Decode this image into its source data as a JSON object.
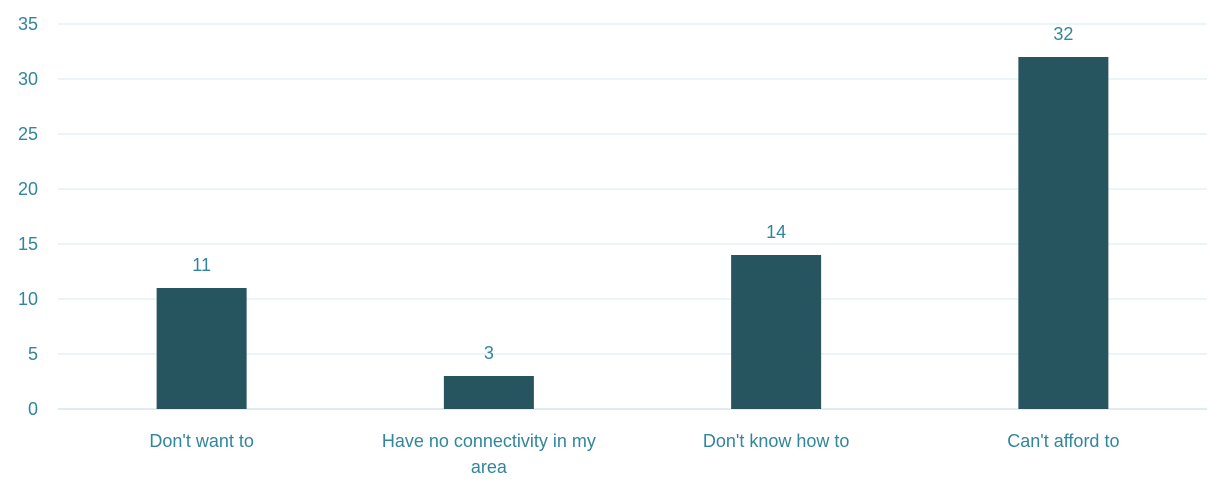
{
  "colors": {
    "bar": "#265560",
    "text": "#31859C",
    "gridline": "#D7E8EE",
    "axis": "#BFD9E2"
  },
  "chart_data": {
    "type": "bar",
    "categories": [
      [
        "Don't want to"
      ],
      [
        "Have no connectivity in my",
        "area"
      ],
      [
        "Don't know how to"
      ],
      [
        "Can't afford to"
      ]
    ],
    "values": [
      11,
      3,
      14,
      32
    ],
    "ylim": [
      0,
      35
    ],
    "yticks": [
      0,
      5,
      10,
      15,
      20,
      25,
      30,
      35
    ],
    "grid": true,
    "legend": "none"
  }
}
